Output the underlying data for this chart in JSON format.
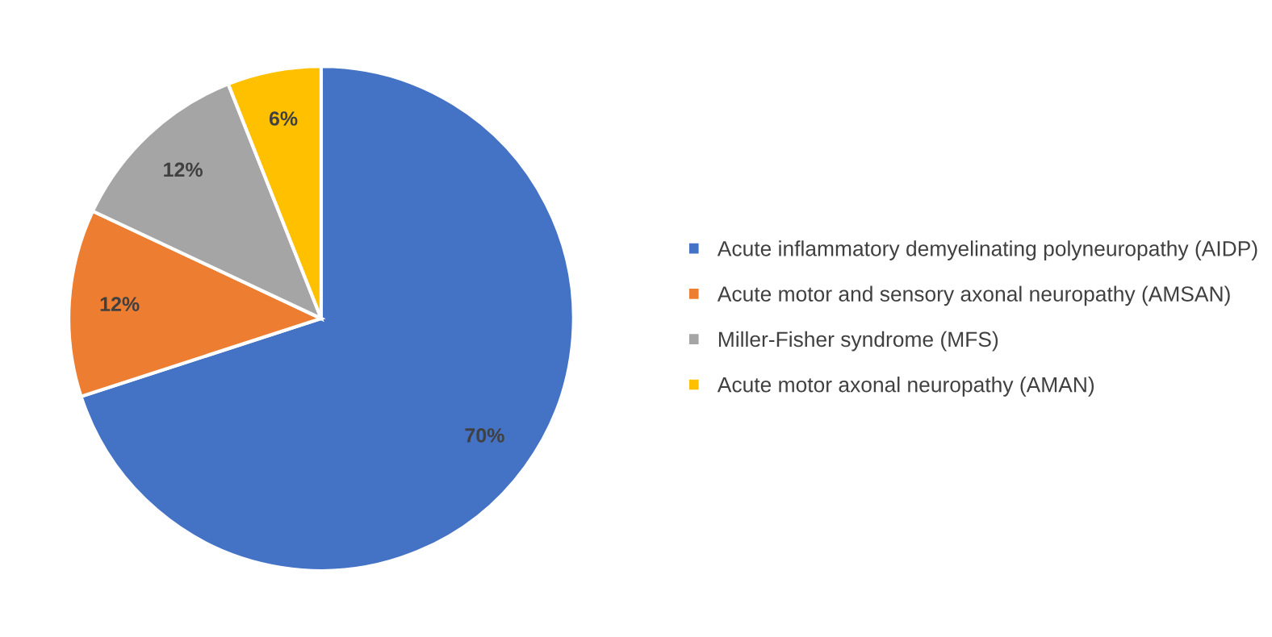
{
  "chart_data": {
    "type": "pie",
    "categories": [
      "Acute inflammatory demyelinating polyneuropathy (AIDP)",
      "Acute motor and sensory axonal neuropathy (AMSAN)",
      "Miller-Fisher syndrome (MFS)",
      "Acute motor axonal neuropathy (AMAN)"
    ],
    "values": [
      70,
      12,
      12,
      6
    ],
    "colors": [
      "#4472c4",
      "#ed7d31",
      "#a5a5a5",
      "#ffc000"
    ],
    "value_labels": [
      "70%",
      "12%",
      "12%",
      "6%"
    ],
    "legend": "right"
  }
}
